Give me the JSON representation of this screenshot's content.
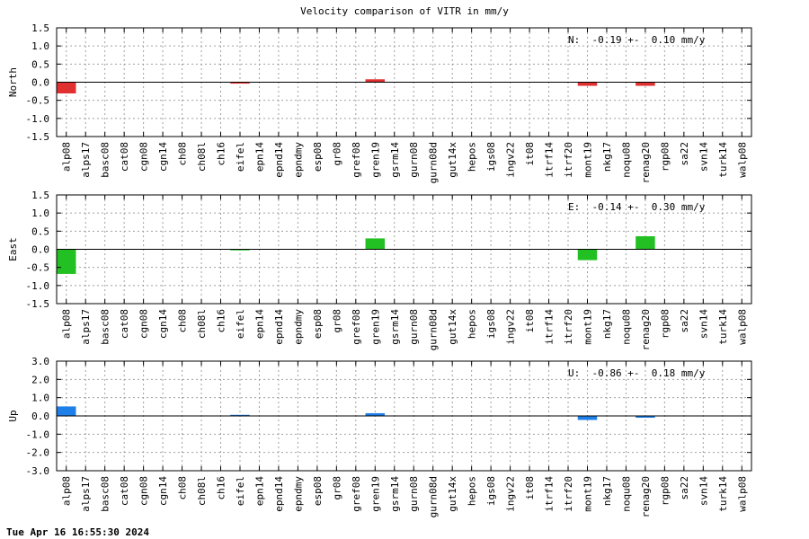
{
  "title": "Velocity comparison of VITR in mm/y",
  "timestamp": "Tue Apr 16 16:55:30 2024",
  "chart_data": [
    {
      "type": "bar",
      "ylabel": "North",
      "ylim": [
        -1.5,
        1.5
      ],
      "yticks": [
        1.5,
        1.0,
        0.5,
        0.0,
        -0.5,
        -1.0,
        -1.5
      ],
      "ytick_labels": [
        "1.5",
        "1.0",
        "0.5",
        "0.0",
        "-0.5",
        "-1.0",
        "-1.5"
      ],
      "grid": true,
      "annotation": "N:  -0.19 +-  0.10 mm/y",
      "color": "#e03030",
      "categories": [
        "alp08",
        "alps17",
        "basc08",
        "cat08",
        "cgn08",
        "cgn14",
        "ch08",
        "ch08l",
        "ch16",
        "eifel",
        "epn14",
        "epnd14",
        "epndmy",
        "esp08",
        "gr08",
        "gref08",
        "gren19",
        "gsrm14",
        "gurn08",
        "gurn08d",
        "gut14x",
        "hepos",
        "igs08",
        "ingv22",
        "it08",
        "itrf14",
        "itrf20",
        "mont19",
        "nkg17",
        "noqu08",
        "renag20",
        "rgp08",
        "sa22",
        "svn14",
        "turk14",
        "walp08"
      ],
      "values": [
        -0.31,
        null,
        null,
        null,
        null,
        null,
        null,
        null,
        null,
        -0.04,
        null,
        null,
        null,
        null,
        null,
        null,
        0.08,
        null,
        null,
        null,
        null,
        null,
        null,
        null,
        null,
        null,
        null,
        -0.1,
        null,
        null,
        -0.1,
        null,
        null,
        null,
        null,
        null
      ]
    },
    {
      "type": "bar",
      "ylabel": "East",
      "ylim": [
        -1.5,
        1.5
      ],
      "yticks": [
        1.5,
        1.0,
        0.5,
        0.0,
        -0.5,
        -1.0,
        -1.5
      ],
      "ytick_labels": [
        "1.5",
        "1.0",
        "0.5",
        "0.0",
        "-0.5",
        "-1.0",
        "-1.5"
      ],
      "grid": true,
      "annotation": "E:  -0.14 +-  0.30 mm/y",
      "color": "#22c022",
      "categories": [
        "alp08",
        "alps17",
        "basc08",
        "cat08",
        "cgn08",
        "cgn14",
        "ch08",
        "ch08l",
        "ch16",
        "eifel",
        "epn14",
        "epnd14",
        "epndmy",
        "esp08",
        "gr08",
        "gref08",
        "gren19",
        "gsrm14",
        "gurn08",
        "gurn08d",
        "gut14x",
        "hepos",
        "igs08",
        "ingv22",
        "it08",
        "itrf14",
        "itrf20",
        "mont19",
        "nkg17",
        "noqu08",
        "renag20",
        "rgp08",
        "sa22",
        "svn14",
        "turk14",
        "walp08"
      ],
      "values": [
        -0.68,
        null,
        null,
        null,
        null,
        null,
        null,
        null,
        null,
        -0.03,
        null,
        null,
        null,
        null,
        null,
        null,
        0.3,
        null,
        null,
        null,
        null,
        null,
        null,
        null,
        null,
        null,
        null,
        -0.3,
        null,
        null,
        0.36,
        null,
        null,
        null,
        null,
        null
      ]
    },
    {
      "type": "bar",
      "ylabel": "Up",
      "ylim": [
        -3.0,
        3.0
      ],
      "yticks": [
        3.0,
        2.0,
        1.0,
        0.0,
        -1.0,
        -2.0,
        -3.0
      ],
      "ytick_labels": [
        "3.0",
        "2.0",
        "1.0",
        "0.0",
        "-1.0",
        "-2.0",
        "-3.0"
      ],
      "grid": true,
      "annotation": "U:  -0.86 +-  0.18 mm/y",
      "color": "#1f7fe8",
      "categories": [
        "alp08",
        "alps17",
        "basc08",
        "cat08",
        "cgn08",
        "cgn14",
        "ch08",
        "ch08l",
        "ch16",
        "eifel",
        "epn14",
        "epnd14",
        "epndmy",
        "esp08",
        "gr08",
        "gref08",
        "gren19",
        "gsrm14",
        "gurn08",
        "gurn08d",
        "gut14x",
        "hepos",
        "igs08",
        "ingv22",
        "it08",
        "itrf14",
        "itrf20",
        "mont19",
        "nkg17",
        "noqu08",
        "renag20",
        "rgp08",
        "sa22",
        "svn14",
        "turk14",
        "walp08"
      ],
      "values": [
        0.52,
        null,
        null,
        null,
        null,
        null,
        null,
        null,
        null,
        0.06,
        null,
        null,
        null,
        null,
        null,
        null,
        0.15,
        null,
        null,
        null,
        null,
        null,
        null,
        null,
        null,
        null,
        null,
        -0.22,
        null,
        null,
        -0.1,
        null,
        null,
        null,
        null,
        null
      ]
    }
  ]
}
